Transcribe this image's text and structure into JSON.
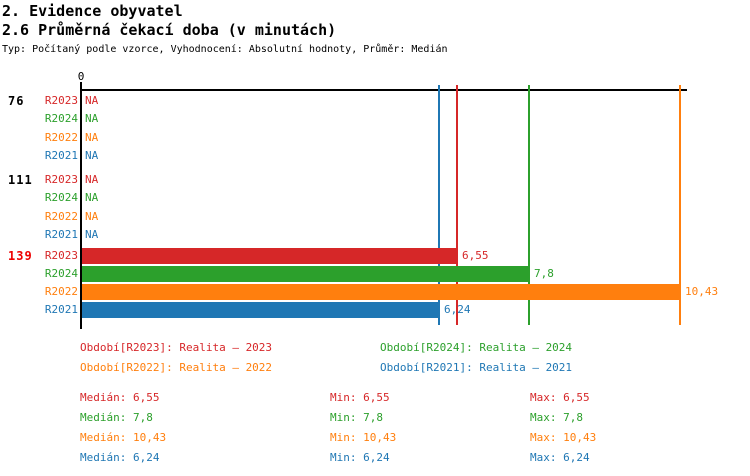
{
  "header": {
    "title_line1": "2. Evidence obyvatel",
    "title_line2": "2.6 Průměrná čekací doba (v minutách)",
    "subtitle": "Typ: Počítaný podle vzorce, Vyhodnocení: Absolutní hodnoty, Průměr: Medián"
  },
  "colors": {
    "r2023": "#d62728",
    "r2024": "#2ca02c",
    "r2022": "#ff7f0e",
    "r2021": "#1f77b4",
    "group_label": "#000000",
    "group_label_highlight": "#ee0000",
    "axis": "#000000",
    "background": "#ffffff"
  },
  "chart_data": {
    "type": "bar",
    "orientation": "horizontal",
    "title": "2.6 Průměrná čekací doba (v minutách)",
    "x_axis": {
      "origin_label": "0",
      "min": 0,
      "max": 10.55,
      "ticks": [
        "0"
      ]
    },
    "series": [
      "R2023",
      "R2024",
      "R2022",
      "R2021"
    ],
    "groups": [
      {
        "label": "76",
        "rows": [
          {
            "series": "R2023",
            "value": null,
            "value_label": "NA"
          },
          {
            "series": "R2024",
            "value": null,
            "value_label": "NA"
          },
          {
            "series": "R2022",
            "value": null,
            "value_label": "NA"
          },
          {
            "series": "R2021",
            "value": null,
            "value_label": "NA"
          }
        ]
      },
      {
        "label": "111",
        "rows": [
          {
            "series": "R2023",
            "value": null,
            "value_label": "NA"
          },
          {
            "series": "R2024",
            "value": null,
            "value_label": "NA"
          },
          {
            "series": "R2022",
            "value": null,
            "value_label": "NA"
          },
          {
            "series": "R2021",
            "value": null,
            "value_label": "NA"
          }
        ]
      },
      {
        "label": "139",
        "highlighted": true,
        "rows": [
          {
            "series": "R2023",
            "value": 6.55,
            "value_label": "6,55"
          },
          {
            "series": "R2024",
            "value": 7.8,
            "value_label": "7,8"
          },
          {
            "series": "R2022",
            "value": 10.43,
            "value_label": "10,43"
          },
          {
            "series": "R2021",
            "value": 6.24,
            "value_label": "6,24"
          }
        ]
      }
    ],
    "value_lines": [
      {
        "series": "R2021",
        "value": 6.24
      },
      {
        "series": "R2023",
        "value": 6.55
      },
      {
        "series": "R2024",
        "value": 7.8
      },
      {
        "series": "R2022",
        "value": 10.43
      }
    ]
  },
  "legend": {
    "items": [
      {
        "series": "R2023",
        "label": "Období[R2023]: Realita – 2023"
      },
      {
        "series": "R2024",
        "label": "Období[R2024]: Realita – 2024"
      },
      {
        "series": "R2022",
        "label": "Období[R2022]: Realita – 2022"
      },
      {
        "series": "R2021",
        "label": "Období[R2021]: Realita – 2021"
      }
    ]
  },
  "stats": {
    "rows": [
      {
        "series": "R2023",
        "median": "Medián: 6,55",
        "min": "Min: 6,55",
        "max": "Max: 6,55"
      },
      {
        "series": "R2024",
        "median": "Medián: 7,8",
        "min": "Min: 7,8",
        "max": "Max: 7,8"
      },
      {
        "series": "R2022",
        "median": "Medián: 10,43",
        "min": "Min: 10,43",
        "max": "Max: 10,43"
      },
      {
        "series": "R2021",
        "median": "Medián: 6,24",
        "min": "Min: 6,24",
        "max": "Max: 6,24"
      }
    ]
  }
}
